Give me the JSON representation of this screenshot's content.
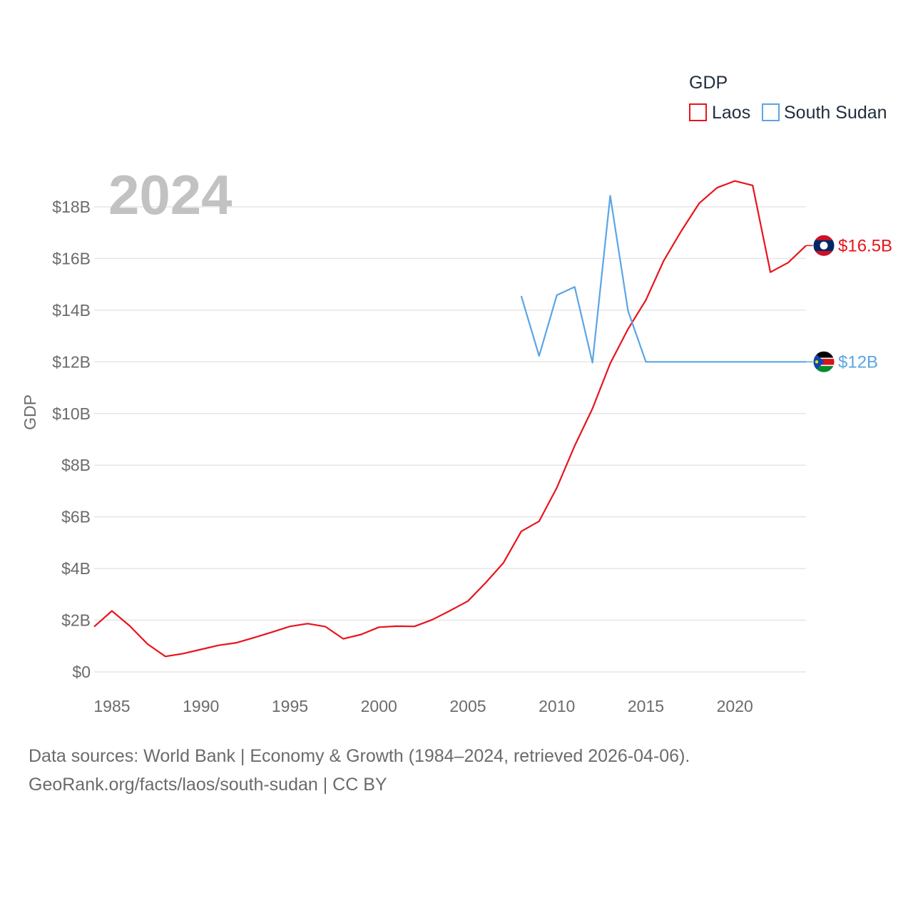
{
  "chart_data": {
    "type": "line",
    "legend_title": "GDP",
    "ylabel": "GDP",
    "year_label": "2024",
    "xlim": [
      1984,
      2024
    ],
    "ylim": [
      0,
      19.6
    ],
    "x_ticks": [
      1985,
      1990,
      1995,
      2000,
      2005,
      2010,
      2015,
      2020
    ],
    "y_ticks": [
      {
        "value": 0,
        "label": "$0"
      },
      {
        "value": 2,
        "label": "$2B"
      },
      {
        "value": 4,
        "label": "$4B"
      },
      {
        "value": 6,
        "label": "$6B"
      },
      {
        "value": 8,
        "label": "$8B"
      },
      {
        "value": 10,
        "label": "$10B"
      },
      {
        "value": 12,
        "label": "$12B"
      },
      {
        "value": 14,
        "label": "$14B"
      },
      {
        "value": 16,
        "label": "$16B"
      },
      {
        "value": 18,
        "label": "$18B"
      }
    ],
    "legend_placement": "top-right",
    "series": [
      {
        "name": "Laos",
        "color": "#e8141c",
        "end_label": "$16.5B",
        "flag": "laos-flag",
        "points": [
          [
            1984,
            1.75
          ],
          [
            1985,
            2.36
          ],
          [
            1986,
            1.78
          ],
          [
            1987,
            1.08
          ],
          [
            1988,
            0.6
          ],
          [
            1989,
            0.71
          ],
          [
            1990,
            0.87
          ],
          [
            1991,
            1.03
          ],
          [
            1992,
            1.13
          ],
          [
            1993,
            1.33
          ],
          [
            1994,
            1.54
          ],
          [
            1995,
            1.76
          ],
          [
            1996,
            1.87
          ],
          [
            1997,
            1.75
          ],
          [
            1998,
            1.28
          ],
          [
            1999,
            1.45
          ],
          [
            2000,
            1.73
          ],
          [
            2001,
            1.77
          ],
          [
            2002,
            1.76
          ],
          [
            2003,
            2.02
          ],
          [
            2004,
            2.37
          ],
          [
            2005,
            2.74
          ],
          [
            2006,
            3.45
          ],
          [
            2007,
            4.22
          ],
          [
            2008,
            5.44
          ],
          [
            2009,
            5.83
          ],
          [
            2010,
            7.13
          ],
          [
            2011,
            8.75
          ],
          [
            2012,
            10.19
          ],
          [
            2013,
            11.94
          ],
          [
            2014,
            13.27
          ],
          [
            2015,
            14.39
          ],
          [
            2016,
            15.91
          ],
          [
            2017,
            17.07
          ],
          [
            2018,
            18.14
          ],
          [
            2019,
            18.74
          ],
          [
            2020,
            19.0
          ],
          [
            2021,
            18.83
          ],
          [
            2022,
            15.47
          ],
          [
            2023,
            15.84
          ],
          [
            2024,
            16.5
          ]
        ]
      },
      {
        "name": "South Sudan",
        "color": "#5aa5e6",
        "end_label": "$12B",
        "flag": "south-sudan-flag",
        "points": [
          [
            2008,
            14.55
          ],
          [
            2009,
            12.23
          ],
          [
            2010,
            14.58
          ],
          [
            2011,
            14.9
          ],
          [
            2012,
            11.97
          ],
          [
            2013,
            18.43
          ],
          [
            2014,
            13.97
          ],
          [
            2015,
            12.0
          ],
          [
            2016,
            12.0
          ],
          [
            2017,
            12.0
          ],
          [
            2018,
            12.0
          ],
          [
            2019,
            12.0
          ],
          [
            2020,
            12.0
          ],
          [
            2021,
            12.0
          ],
          [
            2022,
            12.0
          ],
          [
            2023,
            12.0
          ],
          [
            2024,
            12.0
          ]
        ]
      }
    ]
  },
  "footer": {
    "line1": "Data sources: World Bank | Economy & Growth (1984–2024, retrieved 2026-04-06).",
    "line2": "GeoRank.org/facts/laos/south-sudan | CC BY"
  }
}
